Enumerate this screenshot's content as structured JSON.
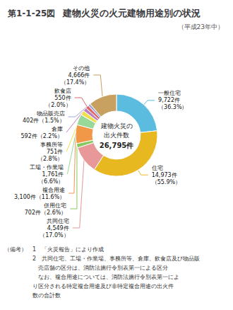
{
  "chart_data": {
    "type": "pie",
    "title": "建物火災の火元建物用途別の状況",
    "subtitle": "（平成23年中）",
    "annotations": {
      "figure": "第1-1-25図",
      "center": [
        "建物火災の",
        "出火件数",
        "26,795件"
      ],
      "notes": [
        "（備考）　1　「火災報告」により作成",
        "　　　　　2　共同住宅、工場・作業場、事務所等、倉庫、飲食店及び物品販",
        "　　　　　　売店舗の区分は、消防法施行令別表第一による区分",
        "　　　　　　なお、複合用途については、消防法施行令別表第一によ",
        "　　　　　り区分される特定複合用途及び非特定複合用途の出火件",
        "　　　　　数の合計数"
      ]
    },
    "categories": [
      "一般住宅",
      "住宅",
      "共同住宅",
      "併用住宅",
      "複合用途",
      "工場・作業場",
      "事務所等",
      "倉庫",
      "飲食店",
      "物品販売店",
      "その他"
    ],
    "values": [
      9722,
      14973,
      4549,
      702,
      3100,
      1761,
      751,
      592,
      550,
      402,
      4666
    ],
    "value_labels": [
      "一般住宅\n9,722件\n（36.3%）",
      "住宅\n14,973件\n（55.9%）",
      "共同住宅\n4,549件\n（17.0%）",
      "併用住宅\n702件（2.6%）",
      "複合用途\n3,100件（11.6%）",
      "工場・作業場\n1,761件\n（6.6%）",
      "事務所等\n751件\n（2.8%）",
      "倉庫\n592件（2.2%）",
      "飲食店\n550件\n（2.0%）",
      "物品販売店\n402件（1.5%）",
      "その他\n4,666件\n（17.4%）"
    ],
    "colors": [
      "#5bbce0",
      "#e8b820",
      "#e89898",
      "#88c860",
      "#f09848",
      "#98d898",
      "#f0e050",
      "#c080c0",
      "#e06868",
      "#a0a8d8",
      "#c8a060"
    ],
    "data_labels": true
  }
}
